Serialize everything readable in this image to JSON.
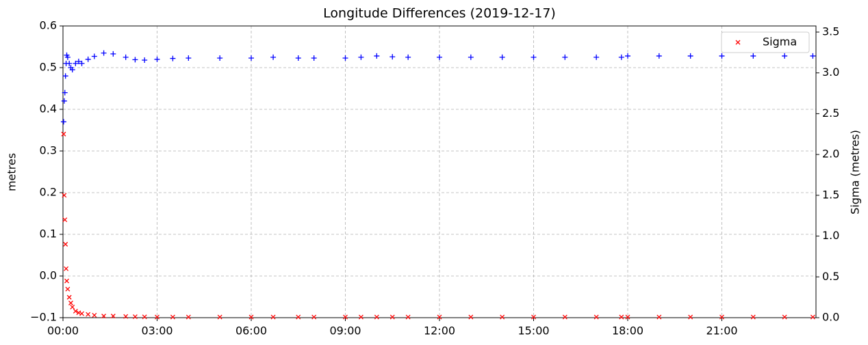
{
  "chart_data": {
    "type": "scatter",
    "title": "Longitude Differences (2019-12-17)",
    "y_label": "metres",
    "y2_label": "Sigma (metres)",
    "x": [
      0.02,
      0.04,
      0.06,
      0.08,
      0.1,
      0.12,
      0.15,
      0.2,
      0.25,
      0.3,
      0.4,
      0.5,
      0.6,
      0.8,
      1.0,
      1.3,
      1.6,
      2.0,
      2.3,
      2.6,
      3.0,
      3.5,
      4,
      5,
      6,
      6.7,
      7.5,
      8,
      9,
      9.5,
      10,
      10.5,
      11,
      12,
      13,
      14,
      15,
      16,
      17,
      17.8,
      18,
      19,
      20,
      21,
      22,
      23,
      23.9
    ],
    "series": [
      {
        "color": "#0000ff",
        "marker": "+",
        "values": [
          0.37,
          0.42,
          0.44,
          0.48,
          0.51,
          0.53,
          0.525,
          0.51,
          0.5,
          0.495,
          0.51,
          0.515,
          0.51,
          0.52,
          0.527,
          0.535,
          0.533,
          0.525,
          0.519,
          0.518,
          0.52,
          0.522,
          0.523,
          0.523,
          0.523,
          0.525,
          0.523,
          0.523,
          0.523,
          0.525,
          0.528,
          0.526,
          0.525,
          0.525,
          0.525,
          0.525,
          0.525,
          0.525,
          0.525,
          0.525,
          0.528,
          0.528,
          0.528,
          0.528,
          0.528,
          0.528,
          0.528
        ]
      },
      {
        "name": "Sigma",
        "color": "#ff0000",
        "marker": "x",
        "axis": "y2",
        "values": [
          2.25,
          1.5,
          1.2,
          0.9,
          0.6,
          0.45,
          0.35,
          0.25,
          0.18,
          0.13,
          0.08,
          0.06,
          0.05,
          0.04,
          0.03,
          0.02,
          0.02,
          0.015,
          0.012,
          0.01,
          0.008,
          0.008,
          0.008,
          0.008,
          0.008,
          0.008,
          0.008,
          0.008,
          0.008,
          0.008,
          0.008,
          0.008,
          0.008,
          0.008,
          0.008,
          0.008,
          0.008,
          0.008,
          0.008,
          0.008,
          0.008,
          0.008,
          0.008,
          0.008,
          0.008,
          0.008,
          0.008
        ]
      }
    ],
    "xlim": [
      0,
      24
    ],
    "xticks": [
      {
        "value": 0,
        "label": "00:00"
      },
      {
        "value": 3,
        "label": "03:00"
      },
      {
        "value": 6,
        "label": "06:00"
      },
      {
        "value": 9,
        "label": "09:00"
      },
      {
        "value": 12,
        "label": "12:00"
      },
      {
        "value": 15,
        "label": "15:00"
      },
      {
        "value": 18,
        "label": "18:00"
      },
      {
        "value": 21,
        "label": "21:00"
      }
    ],
    "ylim": [
      -0.1,
      0.6
    ],
    "yticks": [
      {
        "value": -0.1,
        "label": "−0.1"
      },
      {
        "value": 0,
        "label": "0.0"
      },
      0.1,
      0.2,
      0.3,
      0.4,
      0.5,
      0.6
    ],
    "y2lim": [
      0,
      3.575
    ],
    "y2ticks": [
      {
        "value": 0,
        "label": "0.0"
      },
      0.5,
      {
        "value": 1,
        "label": "1.0"
      },
      1.5,
      {
        "value": 2,
        "label": "2.0"
      },
      2.5,
      {
        "value": 3,
        "label": "3.0"
      },
      3.5
    ],
    "grid": true,
    "legend": "upper right"
  }
}
